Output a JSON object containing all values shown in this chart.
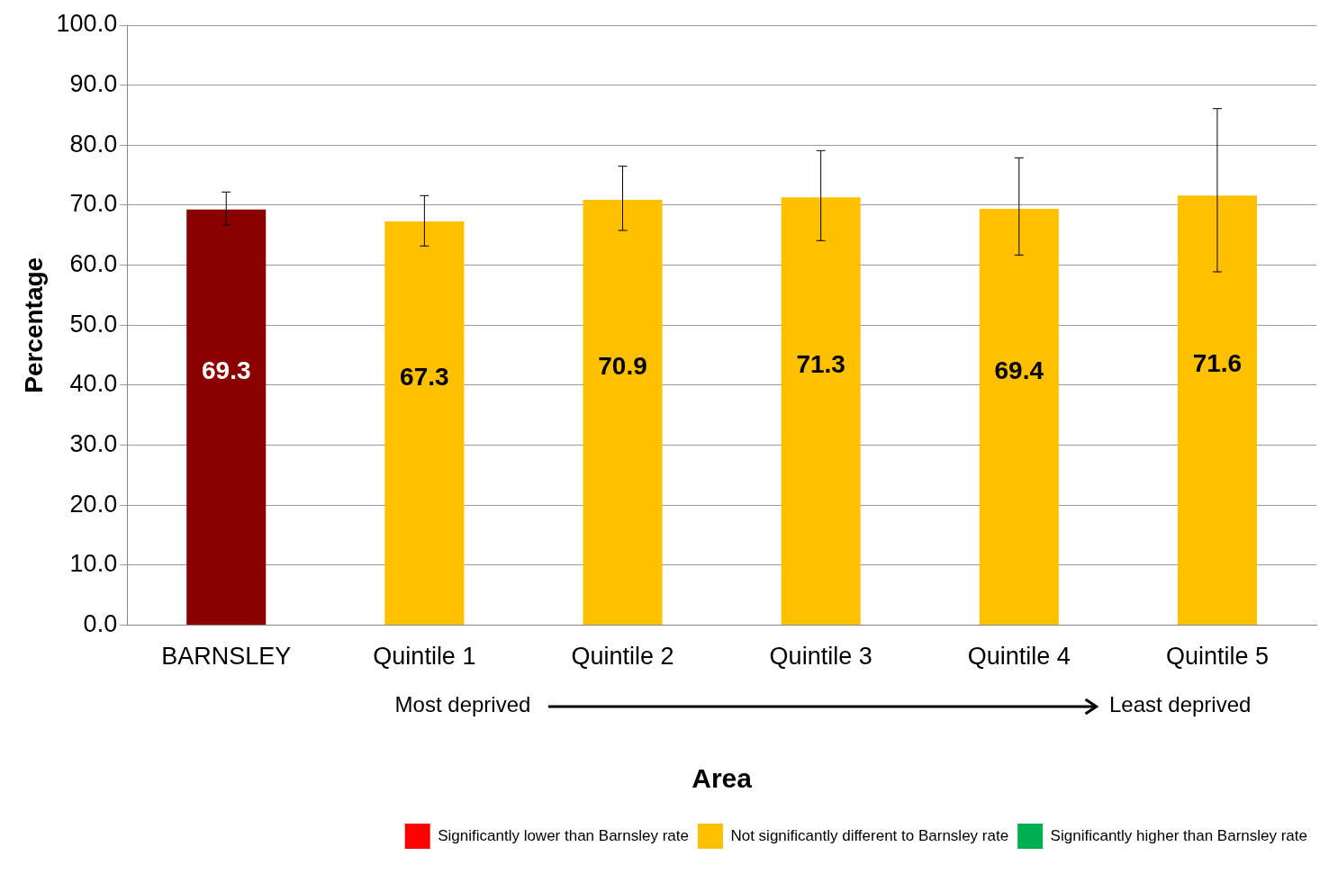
{
  "chart_data": {
    "type": "bar",
    "xlabel": "Area",
    "ylabel": "Percentage",
    "categories": [
      "BARNSLEY",
      "Quintile 1",
      "Quintile 2",
      "Quintile 3",
      "Quintile 4",
      "Quintile 5"
    ],
    "stacked": true,
    "series": [
      {
        "color": "#8b0000",
        "values": [
          69.3,
          null,
          null,
          null,
          null,
          null
        ],
        "errors": [
          [
            66.7,
            72.2
          ],
          null,
          null,
          null,
          null,
          null
        ]
      },
      {
        "name": "Significantly lower than Barnsley rate",
        "color": "#ff0000",
        "values": [
          null,
          null,
          null,
          null,
          null,
          null
        ]
      },
      {
        "name": "Not significantly different to Barnsley rate",
        "color": "#ffc000",
        "values": [
          null,
          67.3,
          70.9,
          71.3,
          69.4,
          71.6
        ],
        "errors": [
          null,
          [
            63.2,
            71.6
          ],
          [
            65.8,
            76.5
          ],
          [
            64.1,
            79.1
          ],
          [
            61.7,
            77.9
          ],
          [
            58.9,
            86.1
          ]
        ]
      },
      {
        "name": "Significantly higher than Barnsley rate",
        "color": "#00b050",
        "values": [
          null,
          null,
          null,
          null,
          null,
          null
        ]
      }
    ],
    "ylim": [
      0,
      100
    ],
    "yticks": [
      {
        "value": 0,
        "label": "0.0"
      },
      {
        "value": 10,
        "label": "10.0"
      },
      {
        "value": 20,
        "label": "20.0"
      },
      {
        "value": 30,
        "label": "30.0"
      },
      {
        "value": 40,
        "label": "40.0"
      },
      {
        "value": 50,
        "label": "50.0"
      },
      {
        "value": 60,
        "label": "60.0"
      },
      {
        "value": 70,
        "label": "70.0"
      },
      {
        "value": 80,
        "label": "80.0"
      },
      {
        "value": 90,
        "label": "90.0"
      },
      {
        "value": 100,
        "label": "100.0"
      }
    ],
    "grid": "y",
    "legend": "bottom right",
    "data_labels": true,
    "annotations": [
      "Most deprived",
      "Least deprived"
    ]
  }
}
